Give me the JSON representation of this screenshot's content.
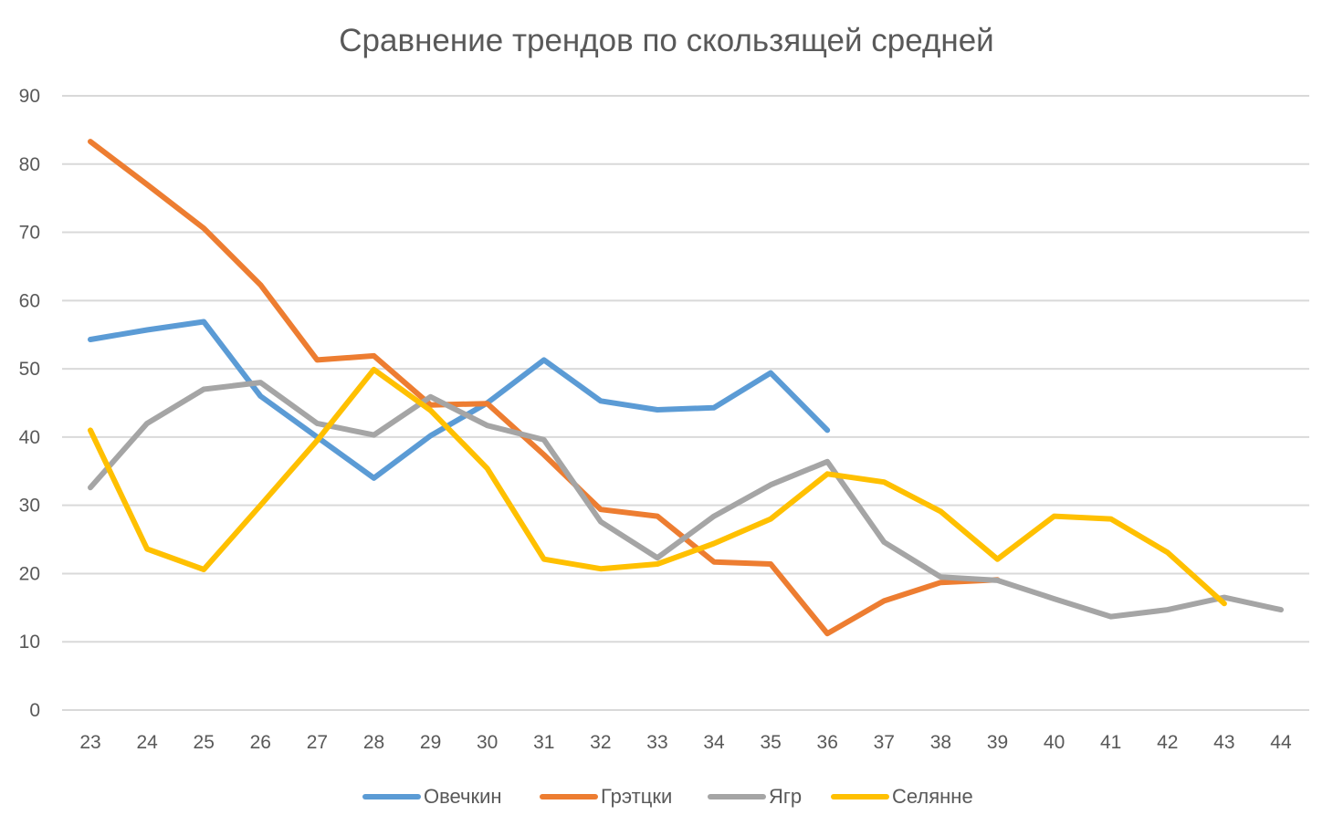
{
  "chart_data": {
    "type": "line",
    "title": "Сравнение трендов по скользящей средней",
    "xlabel": "",
    "ylabel": "",
    "x": [
      23,
      24,
      25,
      26,
      27,
      28,
      29,
      30,
      31,
      32,
      33,
      34,
      35,
      36,
      37,
      38,
      39,
      40,
      41,
      42,
      43,
      44
    ],
    "ylim": [
      0,
      90
    ],
    "yticks": [
      0,
      10,
      20,
      30,
      40,
      50,
      60,
      70,
      80,
      90
    ],
    "grid": true,
    "legend_position": "bottom",
    "series": [
      {
        "name": "Овечкин",
        "color": "#5b9bd5",
        "values": [
          54.3,
          55.7,
          56.9,
          46,
          40,
          34,
          40.2,
          45,
          51.3,
          45.3,
          44,
          44.3,
          49.4,
          41,
          null,
          null,
          null,
          null,
          null,
          null,
          null,
          null
        ]
      },
      {
        "name": "Грэтцки",
        "color": "#ed7d31",
        "values": [
          83.3,
          77,
          70.6,
          62.3,
          51.3,
          51.9,
          44.7,
          44.9,
          37.4,
          29.4,
          28.4,
          21.7,
          21.4,
          11.2,
          16,
          18.7,
          19.1,
          null,
          null,
          null,
          null,
          null
        ]
      },
      {
        "name": "Ягр",
        "color": "#a5a5a5",
        "values": [
          32.6,
          42,
          47,
          48,
          42,
          40.3,
          45.9,
          41.7,
          39.6,
          27.6,
          22.3,
          28.4,
          33,
          36.4,
          24.6,
          19.5,
          19,
          16.3,
          13.7,
          14.7,
          16.5,
          14.7
        ]
      },
      {
        "name": "Селянне",
        "color": "#ffc000",
        "values": [
          41,
          23.6,
          20.6,
          30,
          39.5,
          49.9,
          43.9,
          35.4,
          22.1,
          20.7,
          21.4,
          24.4,
          28,
          34.6,
          33.4,
          29.1,
          22.1,
          28.4,
          28,
          23.1,
          15.6,
          null
        ]
      }
    ]
  }
}
